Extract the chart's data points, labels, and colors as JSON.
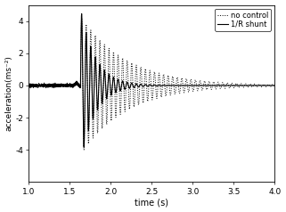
{
  "title": "",
  "xlabel": "time (s)",
  "ylabel": "acceleration(ms⁻²)",
  "xlim": [
    1.0,
    4.0
  ],
  "ylim": [
    -6,
    5
  ],
  "yticks": [
    -4,
    -2,
    0,
    2,
    4
  ],
  "xticks": [
    1.0,
    1.5,
    2.0,
    2.5,
    3.0,
    3.5,
    4.0
  ],
  "xtick_labels": [
    "1.0",
    "1.5",
    "2.0",
    "2.5",
    "3.0",
    "3.5",
    "4.0"
  ],
  "legend_labels": [
    "no control",
    "1/R shunt"
  ],
  "background_color": "#ffffff",
  "line_color": "#000000",
  "dot_color": "#000000",
  "impact_time": 1.63,
  "freq_no_control": 18.0,
  "decay_no_control": 1.8,
  "amp_no_control": 4.3,
  "freq_shunt": 18.0,
  "decay_shunt": 5.5,
  "amp_shunt": 4.8,
  "pre_noise_level": 0.05,
  "xlabel_fontsize": 7,
  "ylabel_fontsize": 6.5,
  "tick_fontsize": 6.5,
  "legend_fontsize": 6
}
